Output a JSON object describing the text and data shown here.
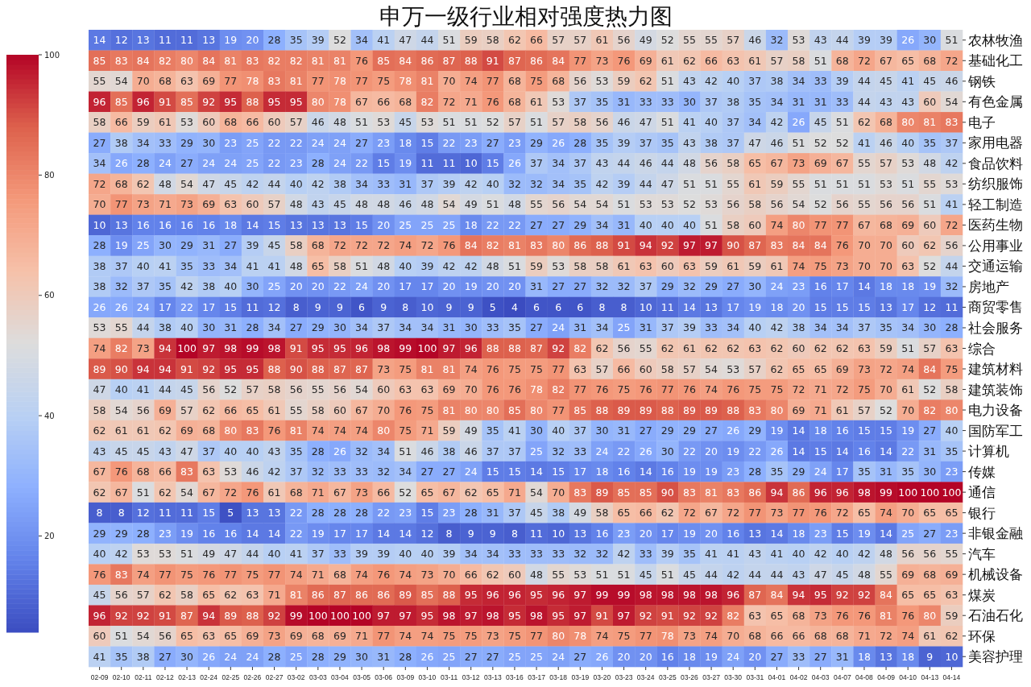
{
  "chart_data": {
    "type": "heatmap",
    "title": "申万一级行业相对强度热力图",
    "categories": [
      "02-09",
      "02-10",
      "02-11",
      "02-12",
      "02-13",
      "02-24",
      "02-25",
      "02-26",
      "02-27",
      "03-02",
      "03-03",
      "03-04",
      "03-05",
      "03-06",
      "03-09",
      "03-10",
      "03-11",
      "03-12",
      "03-13",
      "03-16",
      "03-17",
      "03-18",
      "03-19",
      "03-20",
      "03-23",
      "03-24",
      "03-25",
      "03-26",
      "03-27",
      "03-30",
      "03-31",
      "04-01",
      "04-02",
      "04-03",
      "04-07",
      "04-08",
      "04-09",
      "04-10",
      "04-13",
      "04-14"
    ],
    "y_categories": [
      "农林牧渔",
      "基础化工",
      "钢铁",
      "有色金属",
      "电子",
      "家用电器",
      "食品饮料",
      "纺织服饰",
      "轻工制造",
      "医药生物",
      "公用事业",
      "交通运输",
      "房地产",
      "商贸零售",
      "社会服务",
      "综合",
      "建筑材料",
      "建筑装饰",
      "电力设备",
      "国防军工",
      "计算机",
      "传媒",
      "通信",
      "银行",
      "非银金融",
      "汽车",
      "机械设备",
      "煤炭",
      "石油石化",
      "环保",
      "美容护理"
    ],
    "cells": [
      [
        14,
        12,
        13,
        11,
        11,
        13,
        19,
        20,
        28,
        35,
        39,
        52,
        34,
        41,
        47,
        44,
        51,
        59,
        58,
        62,
        66,
        57,
        57,
        61,
        56,
        49,
        52,
        55,
        55,
        57,
        46,
        32,
        53,
        43,
        44,
        39,
        39,
        26,
        30,
        51
      ],
      [
        85,
        83,
        84,
        82,
        80,
        84,
        81,
        83,
        82,
        82,
        81,
        81,
        76,
        85,
        84,
        86,
        87,
        88,
        91,
        87,
        86,
        84,
        77,
        73,
        76,
        69,
        61,
        62,
        66,
        63,
        61,
        57,
        58,
        51,
        68,
        72,
        67,
        65,
        68,
        72
      ],
      [
        55,
        54,
        70,
        68,
        63,
        69,
        77,
        78,
        83,
        81,
        77,
        78,
        77,
        75,
        78,
        81,
        70,
        74,
        77,
        68,
        75,
        68,
        56,
        53,
        59,
        62,
        51,
        43,
        42,
        40,
        37,
        38,
        34,
        33,
        39,
        44,
        45,
        41,
        45,
        46
      ],
      [
        96,
        85,
        96,
        91,
        85,
        92,
        95,
        88,
        95,
        95,
        80,
        78,
        67,
        66,
        68,
        82,
        72,
        71,
        76,
        68,
        61,
        53,
        37,
        35,
        31,
        33,
        33,
        30,
        37,
        38,
        35,
        34,
        31,
        31,
        33,
        44,
        43,
        43,
        60,
        54
      ],
      [
        58,
        66,
        59,
        61,
        53,
        60,
        68,
        66,
        60,
        57,
        46,
        48,
        51,
        53,
        45,
        53,
        51,
        51,
        52,
        57,
        51,
        57,
        58,
        56,
        46,
        47,
        51,
        41,
        40,
        37,
        34,
        42,
        26,
        45,
        51,
        62,
        68,
        80,
        81,
        83
      ],
      [
        27,
        38,
        34,
        33,
        29,
        30,
        23,
        25,
        22,
        22,
        24,
        24,
        27,
        23,
        18,
        15,
        22,
        23,
        27,
        23,
        29,
        26,
        28,
        35,
        39,
        37,
        35,
        43,
        38,
        37,
        47,
        46,
        51,
        52,
        52,
        41,
        46,
        40,
        35,
        37
      ],
      [
        34,
        26,
        28,
        24,
        27,
        24,
        24,
        25,
        22,
        23,
        28,
        24,
        22,
        15,
        19,
        11,
        11,
        10,
        15,
        26,
        37,
        34,
        37,
        43,
        44,
        46,
        44,
        48,
        56,
        58,
        65,
        67,
        73,
        69,
        67,
        55,
        57,
        53,
        48,
        42
      ],
      [
        72,
        68,
        62,
        48,
        54,
        47,
        45,
        42,
        44,
        40,
        42,
        38,
        34,
        33,
        31,
        37,
        39,
        42,
        40,
        32,
        32,
        34,
        35,
        42,
        39,
        44,
        47,
        51,
        51,
        55,
        61,
        59,
        55,
        51,
        51,
        51,
        53,
        51,
        55,
        53
      ],
      [
        70,
        77,
        73,
        71,
        73,
        69,
        63,
        60,
        57,
        48,
        43,
        45,
        48,
        48,
        46,
        48,
        54,
        49,
        51,
        48,
        55,
        56,
        54,
        54,
        51,
        53,
        53,
        52,
        53,
        56,
        58,
        56,
        54,
        52,
        56,
        55,
        56,
        56,
        51,
        41
      ],
      [
        10,
        13,
        16,
        16,
        16,
        16,
        18,
        14,
        15,
        13,
        13,
        13,
        15,
        20,
        25,
        25,
        25,
        18,
        22,
        22,
        27,
        27,
        29,
        34,
        31,
        40,
        40,
        40,
        51,
        58,
        60,
        74,
        80,
        77,
        77,
        67,
        68,
        69,
        60,
        72
      ],
      [
        28,
        19,
        25,
        30,
        29,
        31,
        27,
        39,
        45,
        58,
        68,
        72,
        72,
        72,
        74,
        72,
        76,
        84,
        82,
        81,
        83,
        80,
        86,
        88,
        91,
        94,
        92,
        97,
        97,
        90,
        87,
        83,
        84,
        84,
        76,
        70,
        70,
        60,
        62,
        56
      ],
      [
        38,
        37,
        40,
        41,
        35,
        33,
        34,
        41,
        41,
        48,
        65,
        58,
        51,
        48,
        40,
        39,
        42,
        42,
        48,
        51,
        59,
        53,
        58,
        58,
        61,
        63,
        60,
        63,
        59,
        61,
        59,
        61,
        74,
        75,
        73,
        70,
        70,
        63,
        52,
        44
      ],
      [
        38,
        32,
        37,
        35,
        42,
        38,
        40,
        30,
        25,
        20,
        20,
        22,
        24,
        20,
        17,
        17,
        20,
        19,
        20,
        20,
        31,
        27,
        27,
        32,
        32,
        37,
        29,
        32,
        29,
        27,
        30,
        24,
        23,
        16,
        17,
        14,
        18,
        18,
        19,
        32
      ],
      [
        26,
        26,
        24,
        17,
        22,
        17,
        15,
        11,
        12,
        8,
        9,
        9,
        6,
        9,
        8,
        10,
        9,
        9,
        5,
        4,
        6,
        6,
        6,
        8,
        8,
        10,
        11,
        14,
        13,
        17,
        19,
        18,
        20,
        15,
        15,
        15,
        13,
        17,
        12,
        11
      ],
      [
        53,
        55,
        44,
        38,
        40,
        30,
        31,
        28,
        34,
        27,
        29,
        30,
        34,
        37,
        34,
        34,
        31,
        30,
        33,
        35,
        27,
        24,
        31,
        34,
        25,
        31,
        37,
        39,
        33,
        34,
        40,
        42,
        38,
        34,
        34,
        37,
        35,
        34,
        30,
        28
      ],
      [
        74,
        82,
        73,
        94,
        100,
        97,
        98,
        99,
        98,
        91,
        95,
        95,
        96,
        98,
        99,
        100,
        97,
        96,
        88,
        88,
        87,
        92,
        82,
        62,
        56,
        55,
        62,
        61,
        62,
        62,
        63,
        62,
        60,
        62,
        62,
        63,
        59,
        51,
        57,
        63
      ],
      [
        89,
        90,
        94,
        94,
        91,
        92,
        95,
        95,
        88,
        90,
        88,
        87,
        87,
        73,
        75,
        81,
        81,
        74,
        76,
        75,
        75,
        77,
        63,
        57,
        66,
        60,
        58,
        57,
        54,
        53,
        57,
        62,
        65,
        65,
        69,
        73,
        72,
        74,
        84,
        75
      ],
      [
        47,
        40,
        41,
        44,
        45,
        56,
        52,
        57,
        58,
        56,
        55,
        56,
        54,
        60,
        63,
        63,
        69,
        70,
        76,
        76,
        78,
        82,
        77,
        76,
        75,
        76,
        77,
        76,
        74,
        76,
        75,
        75,
        72,
        71,
        72,
        75,
        70,
        61,
        52,
        58
      ],
      [
        58,
        54,
        56,
        69,
        57,
        62,
        66,
        65,
        61,
        55,
        58,
        60,
        67,
        70,
        76,
        75,
        81,
        80,
        80,
        85,
        80,
        77,
        85,
        88,
        89,
        89,
        88,
        89,
        89,
        88,
        83,
        80,
        69,
        71,
        61,
        57,
        52,
        70,
        82,
        80
      ],
      [
        62,
        61,
        61,
        62,
        69,
        68,
        80,
        83,
        76,
        81,
        74,
        74,
        74,
        80,
        75,
        71,
        59,
        49,
        35,
        41,
        30,
        40,
        37,
        30,
        31,
        27,
        29,
        29,
        27,
        26,
        29,
        19,
        14,
        18,
        16,
        15,
        15,
        19,
        27,
        40
      ],
      [
        43,
        45,
        45,
        43,
        47,
        37,
        40,
        40,
        43,
        35,
        28,
        26,
        32,
        34,
        51,
        46,
        38,
        46,
        37,
        37,
        25,
        32,
        33,
        24,
        22,
        26,
        30,
        22,
        20,
        19,
        22,
        26,
        14,
        15,
        14,
        16,
        14,
        22,
        31,
        35
      ],
      [
        67,
        76,
        68,
        66,
        83,
        63,
        53,
        46,
        42,
        37,
        32,
        33,
        33,
        32,
        34,
        27,
        27,
        24,
        15,
        15,
        14,
        15,
        17,
        18,
        16,
        14,
        16,
        19,
        19,
        23,
        28,
        35,
        29,
        24,
        17,
        35,
        31,
        35,
        30,
        23
      ],
      [
        62,
        67,
        51,
        62,
        54,
        67,
        72,
        76,
        61,
        68,
        71,
        67,
        73,
        66,
        52,
        65,
        67,
        62,
        65,
        71,
        54,
        70,
        83,
        89,
        85,
        85,
        90,
        83,
        81,
        83,
        86,
        94,
        86,
        96,
        96,
        98,
        99,
        100,
        100,
        100
      ],
      [
        8,
        8,
        12,
        11,
        11,
        15,
        5,
        13,
        13,
        22,
        28,
        28,
        28,
        22,
        23,
        15,
        23,
        28,
        31,
        37,
        45,
        38,
        49,
        58,
        65,
        66,
        62,
        72,
        67,
        72,
        77,
        73,
        77,
        76,
        72,
        65,
        74,
        70,
        65,
        65
      ],
      [
        29,
        29,
        28,
        23,
        19,
        16,
        16,
        14,
        14,
        22,
        19,
        17,
        17,
        14,
        14,
        12,
        8,
        9,
        9,
        8,
        11,
        10,
        13,
        16,
        23,
        20,
        17,
        19,
        20,
        16,
        13,
        14,
        18,
        23,
        15,
        19,
        14,
        25,
        27,
        23
      ],
      [
        40,
        42,
        53,
        53,
        51,
        49,
        47,
        44,
        40,
        41,
        37,
        33,
        39,
        39,
        40,
        40,
        39,
        34,
        34,
        33,
        33,
        33,
        32,
        32,
        42,
        33,
        39,
        35,
        41,
        41,
        43,
        41,
        40,
        42,
        40,
        42,
        48,
        56,
        56,
        55
      ],
      [
        76,
        83,
        74,
        77,
        75,
        76,
        77,
        75,
        77,
        74,
        71,
        68,
        74,
        76,
        74,
        73,
        70,
        66,
        62,
        60,
        48,
        55,
        53,
        51,
        51,
        45,
        51,
        45,
        44,
        42,
        44,
        44,
        43,
        47,
        45,
        48,
        55,
        69,
        68,
        69
      ],
      [
        45,
        56,
        57,
        62,
        58,
        65,
        62,
        63,
        71,
        81,
        86,
        87,
        86,
        86,
        89,
        85,
        88,
        95,
        96,
        96,
        95,
        96,
        97,
        99,
        99,
        98,
        98,
        98,
        98,
        96,
        87,
        84,
        94,
        95,
        92,
        92,
        84,
        65,
        65,
        63
      ],
      [
        96,
        92,
        92,
        91,
        87,
        94,
        89,
        88,
        92,
        99,
        100,
        100,
        100,
        97,
        97,
        95,
        98,
        97,
        98,
        95,
        98,
        95,
        97,
        91,
        97,
        92,
        91,
        92,
        92,
        82,
        63,
        65,
        68,
        73,
        76,
        76,
        81,
        76,
        80,
        59
      ],
      [
        60,
        51,
        54,
        56,
        65,
        63,
        65,
        69,
        73,
        69,
        68,
        69,
        71,
        77,
        74,
        74,
        75,
        75,
        73,
        75,
        77,
        80,
        78,
        74,
        75,
        77,
        78,
        73,
        74,
        70,
        68,
        66,
        66,
        68,
        68,
        71,
        72,
        74,
        61,
        62
      ],
      [
        41,
        35,
        38,
        27,
        30,
        26,
        24,
        24,
        28,
        25,
        28,
        29,
        30,
        31,
        28,
        26,
        25,
        27,
        27,
        25,
        25,
        24,
        27,
        26,
        20,
        20,
        16,
        18,
        19,
        24,
        20,
        27,
        33,
        27,
        31,
        18,
        13,
        18,
        9,
        10
      ]
    ],
    "clim": [
      4,
      100
    ],
    "cticks": [
      20,
      40,
      60,
      80,
      100
    ],
    "data_labels": true
  }
}
